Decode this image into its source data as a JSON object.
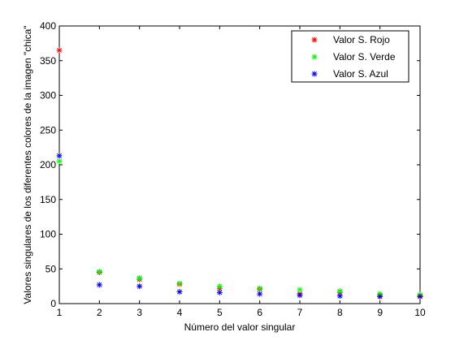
{
  "chart_data": {
    "type": "scatter",
    "xlabel": "Número del valor singular",
    "ylabel": "Valores singulares de los diferentes colores de la imagen \"chica\"",
    "xlim": [
      1,
      10
    ],
    "ylim": [
      0,
      400
    ],
    "x_ticks": [
      "1",
      "2",
      "3",
      "4",
      "5",
      "6",
      "7",
      "8",
      "9",
      "10"
    ],
    "y_ticks": [
      "0",
      "50",
      "100",
      "150",
      "200",
      "250",
      "300",
      "350",
      "400"
    ],
    "grid": false,
    "legend_position": "top-right",
    "marker": "*",
    "x": [
      1,
      2,
      3,
      4,
      5,
      6,
      7,
      8,
      9,
      10
    ],
    "series": [
      {
        "name": "Valor S. Rojo",
        "color": "#ff0000",
        "values": [
          365,
          45,
          35,
          28,
          22,
          21,
          14,
          16,
          12,
          11
        ]
      },
      {
        "name": "Valor S. Verde",
        "color": "#00ff00",
        "values": [
          205,
          46,
          37,
          29,
          25,
          22,
          20,
          18,
          14,
          13
        ]
      },
      {
        "name": "Valor S. Azul",
        "color": "#0000ff",
        "values": [
          213,
          27,
          25,
          17,
          16,
          14,
          12,
          11,
          10,
          10
        ]
      }
    ]
  }
}
